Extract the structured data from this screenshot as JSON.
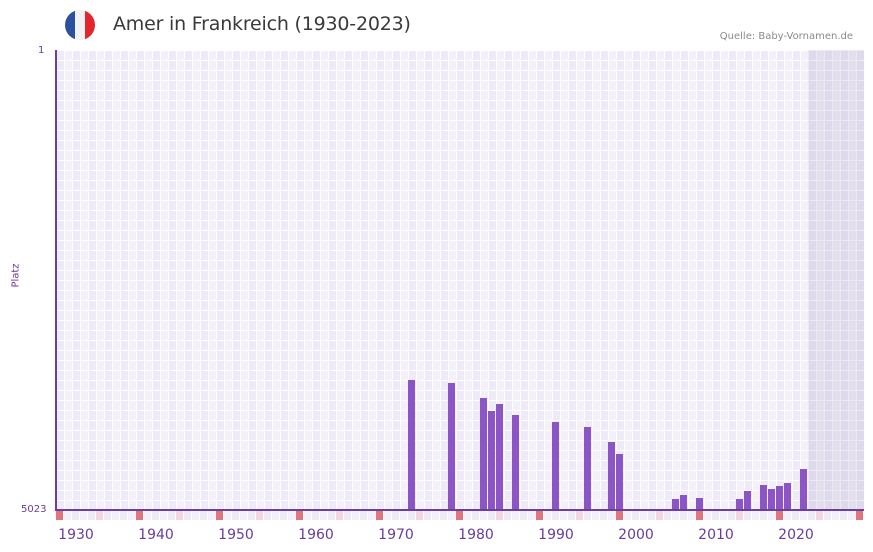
{
  "header": {
    "title": "Amer in Frankreich (1930-2023)",
    "source": "Quelle: Baby-Vornamen.de",
    "flag": {
      "colors": [
        "#2d4fa0",
        "#f2f2f2",
        "#e3262d"
      ],
      "icon": "france-flag-icon"
    }
  },
  "axis": {
    "y_top_label": "1",
    "y_bottom_label": "5023",
    "y_title": "Platz",
    "x_ticks": [
      "1930",
      "1940",
      "1950",
      "1960",
      "1970",
      "1980",
      "1990",
      "2000",
      "2010",
      "2020"
    ]
  },
  "colors": {
    "bar": "#8c55c6",
    "axis": "#6b3fa0",
    "label": "#6a3d9a",
    "grid_a": "#eeeaf8",
    "grid_b": "#f3f0fb",
    "marker_decade": "#e5737e",
    "marker_half": "#f4d6e0"
  },
  "chart_data": {
    "type": "bar",
    "title": "Amer in Frankreich (1930-2023)",
    "xlabel": "",
    "ylabel": "Platz",
    "y_inverted": true,
    "ylim": [
      5023,
      1
    ],
    "xlim": [
      1928,
      2028
    ],
    "projection_shaded_from": 2022,
    "categories": [
      1972,
      1977,
      1981,
      1982,
      1983,
      1985,
      1990,
      1994,
      1997,
      1998,
      2005,
      2006,
      2008,
      2012,
      2013,
      2014,
      2016,
      2017,
      2018,
      2019,
      2021
    ],
    "values": [
      3604,
      3636,
      3800,
      3942,
      3866,
      3986,
      4062,
      4117,
      4281,
      4412,
      4903,
      4859,
      4892,
      5012,
      4903,
      4816,
      4750,
      4794,
      4761,
      4728,
      4575
    ],
    "x_tick_labels": [
      "1930",
      "1940",
      "1950",
      "1960",
      "1970",
      "1980",
      "1990",
      "2000",
      "2010",
      "2020"
    ],
    "y_tick_labels": [
      "1",
      "5023"
    ],
    "grid": true,
    "legend": null,
    "source": "Quelle: Baby-Vornamen.de"
  }
}
